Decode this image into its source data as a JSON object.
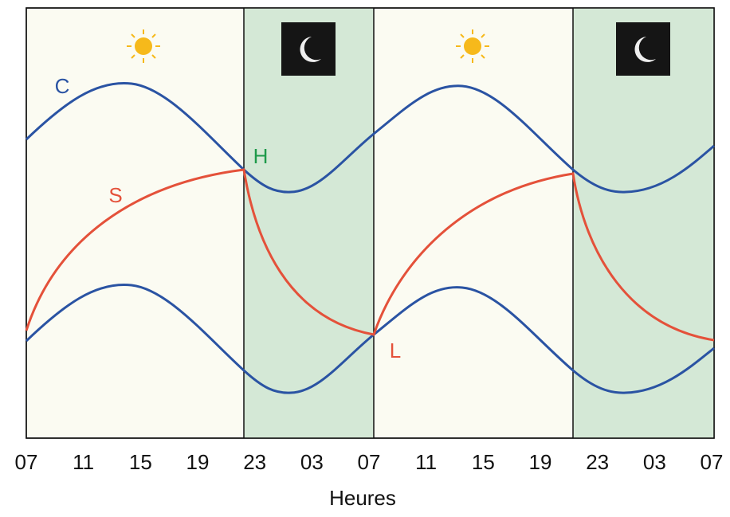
{
  "labels": {
    "c": "C",
    "s": "S",
    "h": "H",
    "l": "L"
  },
  "x_axis": {
    "title": "Heures",
    "ticks": [
      "07",
      "11",
      "15",
      "19",
      "23",
      "03",
      "07",
      "11",
      "15",
      "19",
      "23",
      "03",
      "07"
    ]
  }
}
